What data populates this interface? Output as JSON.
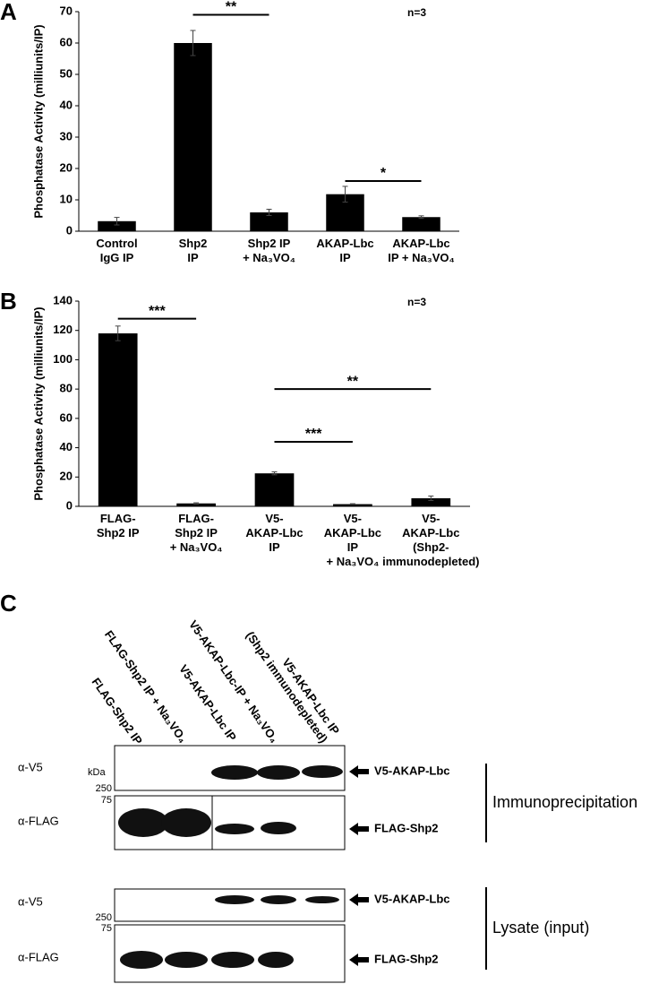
{
  "chart_data": [
    {
      "type": "bar",
      "panel": "A",
      "annotation": "n=3",
      "y_label": "Phosphatase Activity (milliunits/IP)",
      "categories": [
        "Control\nIgG IP",
        "Shp2\nIP",
        "Shp2 IP\n+ Na₃VO₄",
        "AKAP-Lbc\nIP",
        "AKAP-Lbc\nIP + Na₃VO₄"
      ],
      "values": [
        3.2,
        60,
        6,
        11.8,
        4.5
      ],
      "errors": [
        1.2,
        4,
        1,
        2.5,
        0.4
      ],
      "color": "#000000",
      "ylim": [
        0,
        70
      ],
      "yticks": [
        0,
        10,
        20,
        30,
        40,
        50,
        60,
        70
      ],
      "significance": [
        {
          "label": "**",
          "pair": [
            1,
            2
          ],
          "y": 69
        },
        {
          "label": "*",
          "pair": [
            3,
            4
          ],
          "y": 16
        }
      ]
    },
    {
      "type": "bar",
      "panel": "B",
      "annotation": "n=3",
      "y_label": "Phosphatase Activity (milliunits/IP)",
      "categories": [
        "FLAG-\nShp2 IP",
        "FLAG-\nShp2 IP\n+ Na₃VO₄",
        "V5-\nAKAP-Lbc\nIP",
        "V5-\nAKAP-Lbc\nIP\n+ Na₃VO₄",
        "V5-\nAKAP-Lbc\n(Shp2-immunodepleted)"
      ],
      "values": [
        118,
        2,
        22.5,
        1.5,
        5.5
      ],
      "errors": [
        5,
        0.4,
        1,
        0.3,
        1.5
      ],
      "color": "#000000",
      "ylim": [
        0,
        140
      ],
      "yticks": [
        0,
        20,
        40,
        60,
        80,
        100,
        120,
        140
      ],
      "significance": [
        {
          "label": "***",
          "pair": [
            0,
            1
          ],
          "y": 128
        },
        {
          "label": "**",
          "pair": [
            2,
            4
          ],
          "y": 80
        },
        {
          "label": "***",
          "pair": [
            2,
            3
          ],
          "y": 44
        }
      ]
    }
  ],
  "panel_c": {
    "panel": "C",
    "lanes": [
      [
        "FLAG-Shp2 IP"
      ],
      [
        "FLAG-Shp2 IP + Na₃VO₄"
      ],
      [
        "V5-AKAP-Lbc IP"
      ],
      [
        "V5-AKAP-Lbc-IP + Na₃VO₄"
      ],
      [
        "V5-AKAP-Lbc IP",
        "(Shp2 immunodepleted)"
      ]
    ],
    "kda": "kDa",
    "marker_250": "250",
    "marker_75": "75",
    "antibody_v5": "α-V5",
    "antibody_flag": "α-FLAG",
    "band_v5": "V5-AKAP-Lbc",
    "band_flag": "FLAG-Shp2",
    "group_ip": "Immunoprecipitation",
    "group_lysate": "Lysate (input)"
  }
}
